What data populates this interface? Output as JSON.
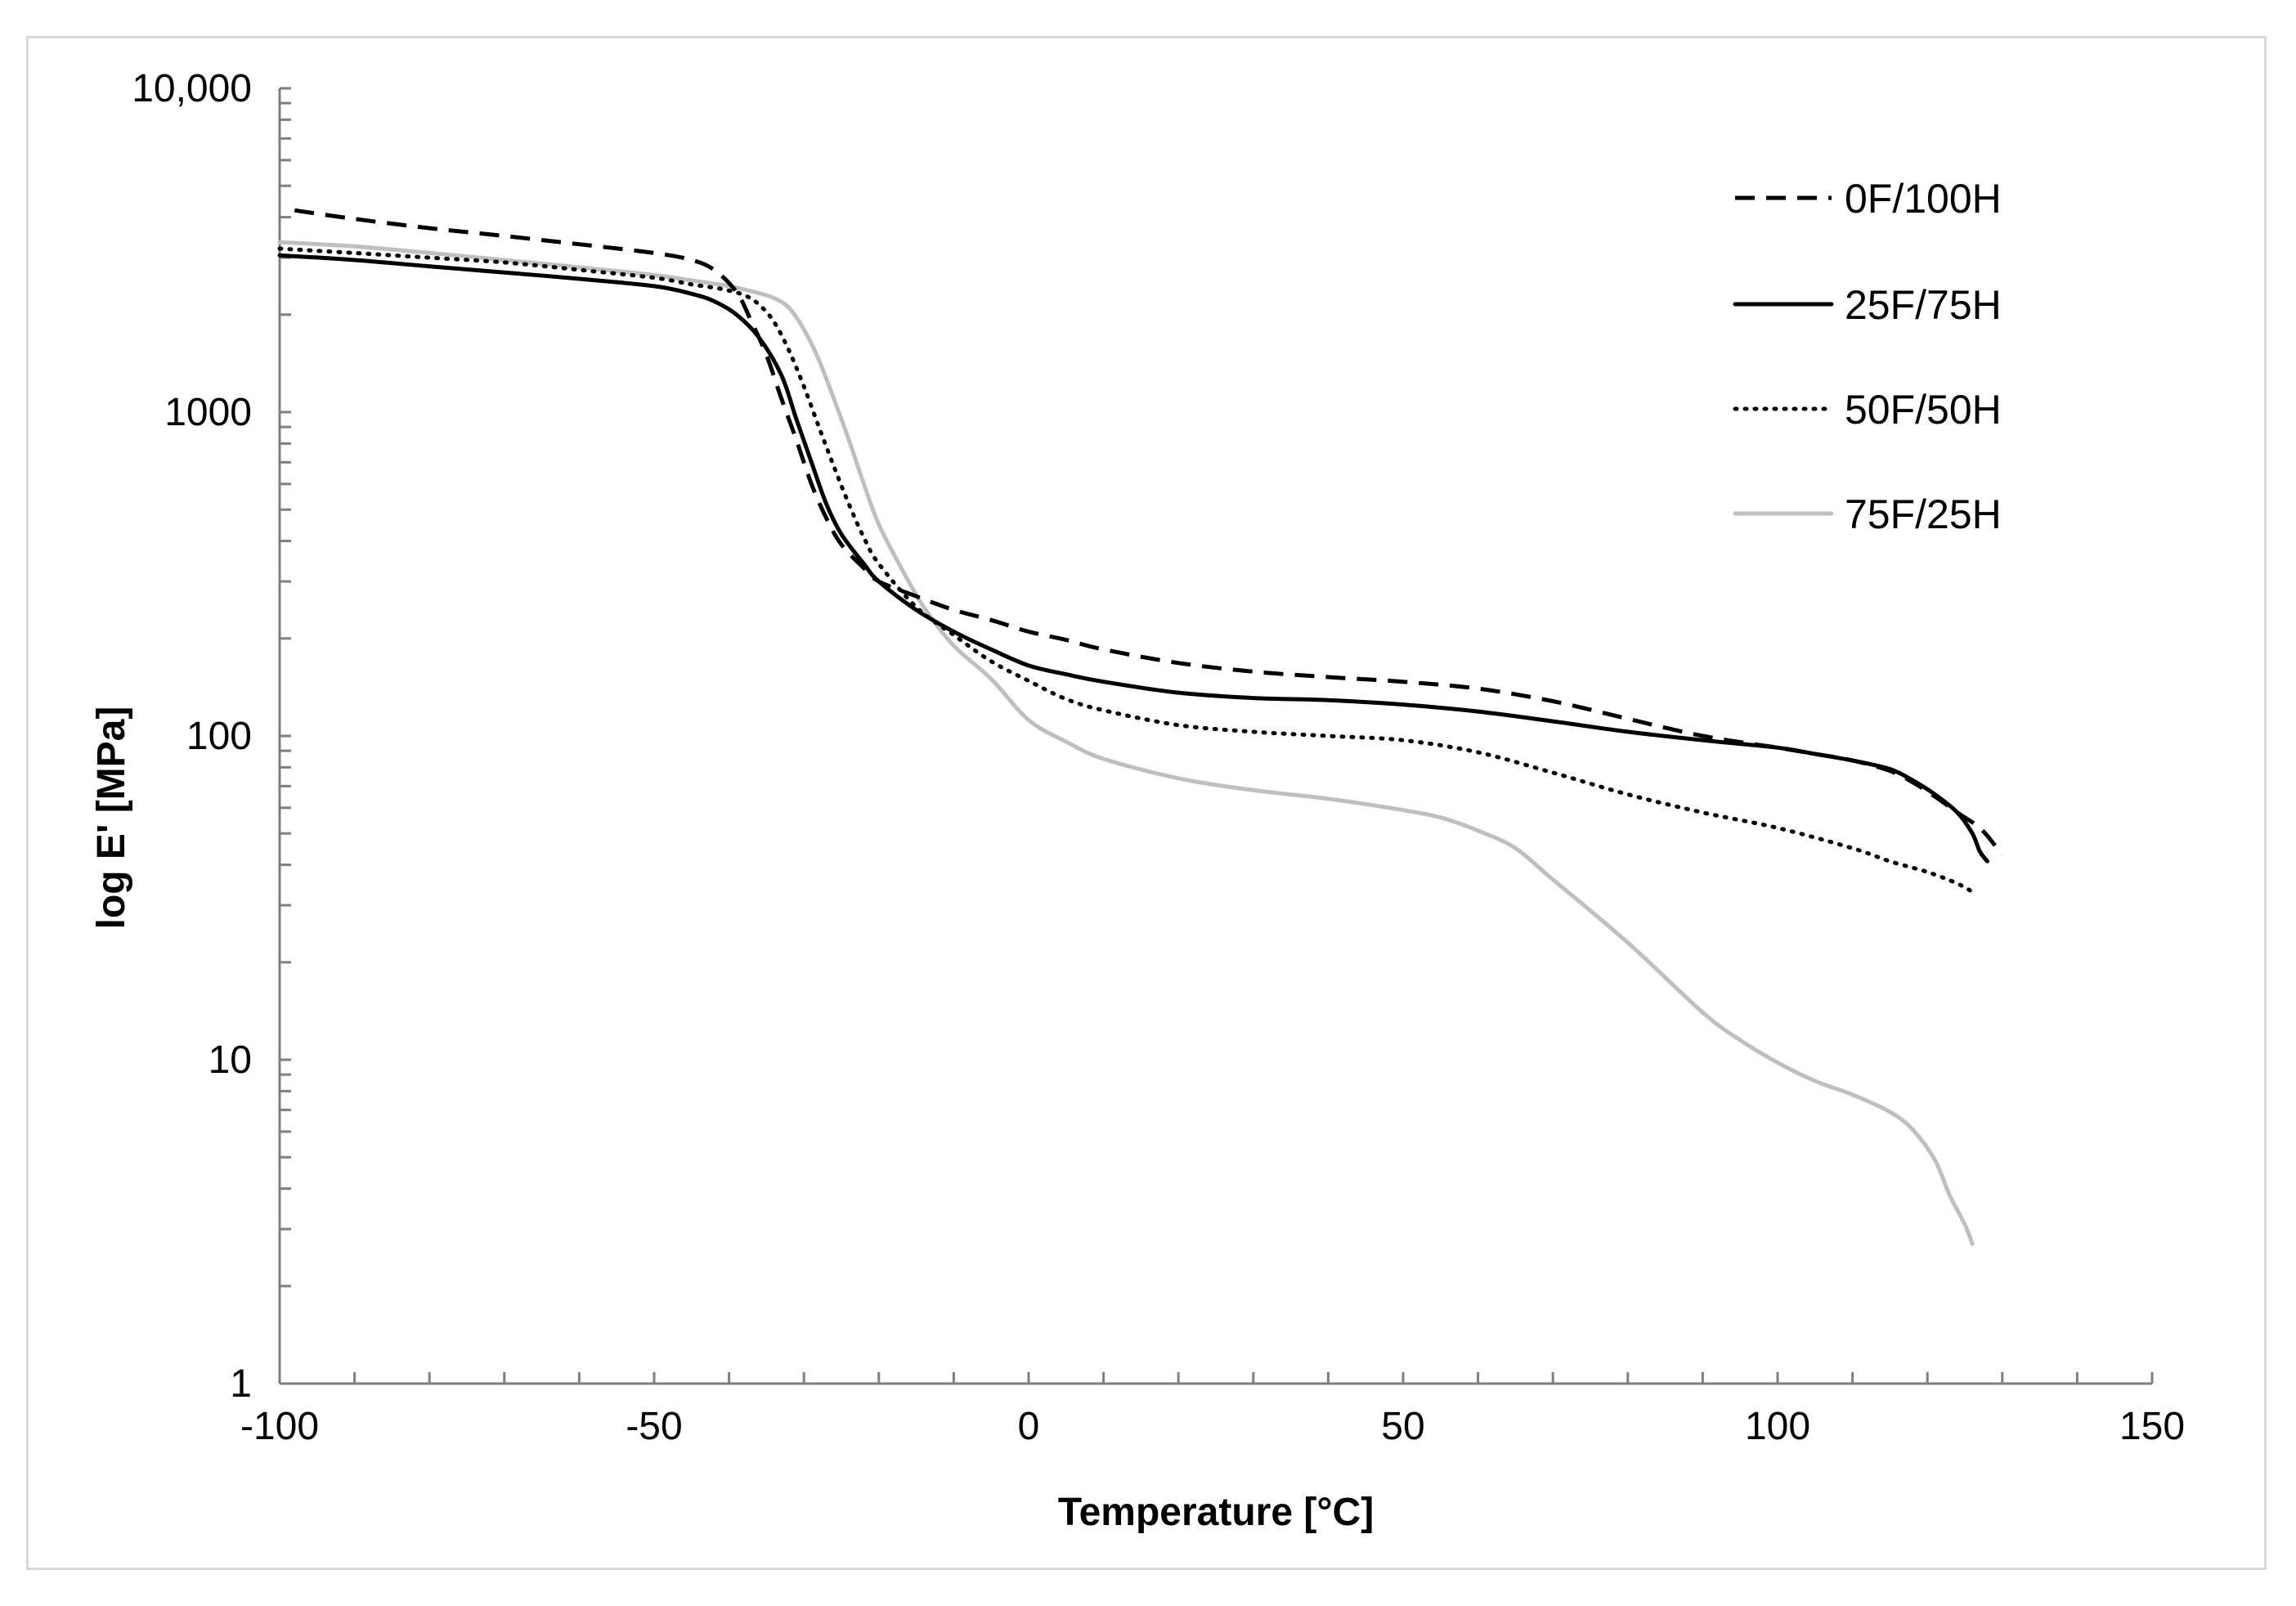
{
  "chart_data": {
    "type": "line",
    "title": "",
    "xlabel": "Temperature [°C]",
    "ylabel": "log E' [MPa]",
    "xlim": [
      -100,
      150
    ],
    "ylim": [
      1,
      10000
    ],
    "yscale": "log",
    "x_ticks": [
      -100,
      -50,
      0,
      50,
      100,
      150
    ],
    "x_tick_labels": [
      "-100",
      "-50",
      "0",
      "50",
      "100",
      "150"
    ],
    "y_ticks": [
      1,
      10,
      100,
      1000,
      10000
    ],
    "y_tick_labels": [
      "1",
      "10",
      "100",
      "1000",
      "10,000"
    ],
    "legend_position": "top-right",
    "series": [
      {
        "name": "0F/100H",
        "color": "#000000",
        "style": "dashed",
        "points": [
          [
            -98,
            4200
          ],
          [
            -90,
            3950
          ],
          [
            -80,
            3700
          ],
          [
            -70,
            3500
          ],
          [
            -60,
            3300
          ],
          [
            -50,
            3100
          ],
          [
            -45,
            2950
          ],
          [
            -42,
            2750
          ],
          [
            -39,
            2350
          ],
          [
            -37,
            1900
          ],
          [
            -35,
            1500
          ],
          [
            -33,
            1100
          ],
          [
            -31,
            820
          ],
          [
            -29,
            600
          ],
          [
            -27,
            470
          ],
          [
            -25,
            390
          ],
          [
            -22,
            330
          ],
          [
            -20,
            300
          ],
          [
            -15,
            270
          ],
          [
            -10,
            245
          ],
          [
            -5,
            228
          ],
          [
            0,
            210
          ],
          [
            5,
            198
          ],
          [
            10,
            185
          ],
          [
            20,
            168
          ],
          [
            30,
            158
          ],
          [
            40,
            152
          ],
          [
            50,
            147
          ],
          [
            60,
            140
          ],
          [
            70,
            128
          ],
          [
            80,
            113
          ],
          [
            90,
            100
          ],
          [
            100,
            92
          ],
          [
            105,
            88
          ],
          [
            110,
            84
          ],
          [
            115,
            78
          ],
          [
            118,
            72
          ],
          [
            121,
            65
          ],
          [
            124,
            58
          ],
          [
            127,
            52
          ],
          [
            129,
            46
          ],
          [
            130,
            43
          ]
        ]
      },
      {
        "name": "25F/75H",
        "color": "#000000",
        "style": "solid",
        "points": [
          [
            -100,
            3050
          ],
          [
            -90,
            2950
          ],
          [
            -80,
            2820
          ],
          [
            -70,
            2700
          ],
          [
            -60,
            2580
          ],
          [
            -50,
            2450
          ],
          [
            -45,
            2320
          ],
          [
            -42,
            2200
          ],
          [
            -39,
            2000
          ],
          [
            -36,
            1700
          ],
          [
            -33,
            1300
          ],
          [
            -31,
            950
          ],
          [
            -29,
            700
          ],
          [
            -27,
            520
          ],
          [
            -25,
            420
          ],
          [
            -22,
            340
          ],
          [
            -20,
            300
          ],
          [
            -15,
            245
          ],
          [
            -10,
            210
          ],
          [
            -5,
            185
          ],
          [
            0,
            165
          ],
          [
            5,
            155
          ],
          [
            10,
            147
          ],
          [
            20,
            136
          ],
          [
            30,
            131
          ],
          [
            40,
            129
          ],
          [
            50,
            125
          ],
          [
            60,
            119
          ],
          [
            70,
            111
          ],
          [
            80,
            103
          ],
          [
            90,
            97
          ],
          [
            100,
            92
          ],
          [
            105,
            88
          ],
          [
            110,
            84
          ],
          [
            115,
            79
          ],
          [
            118,
            73
          ],
          [
            121,
            66
          ],
          [
            124,
            58
          ],
          [
            126,
            50
          ],
          [
            127,
            44
          ],
          [
            128,
            41
          ]
        ]
      },
      {
        "name": "50F/50H",
        "color": "#000000",
        "style": "dotted",
        "points": [
          [
            -100,
            3200
          ],
          [
            -90,
            3100
          ],
          [
            -80,
            3000
          ],
          [
            -70,
            2900
          ],
          [
            -60,
            2750
          ],
          [
            -50,
            2600
          ],
          [
            -45,
            2480
          ],
          [
            -41,
            2400
          ],
          [
            -38,
            2300
          ],
          [
            -36,
            2150
          ],
          [
            -34,
            1900
          ],
          [
            -32,
            1550
          ],
          [
            -30,
            1200
          ],
          [
            -28,
            900
          ],
          [
            -26,
            680
          ],
          [
            -24,
            520
          ],
          [
            -22,
            410
          ],
          [
            -20,
            340
          ],
          [
            -15,
            250
          ],
          [
            -10,
            205
          ],
          [
            -5,
            170
          ],
          [
            0,
            148
          ],
          [
            5,
            130
          ],
          [
            10,
            120
          ],
          [
            20,
            108
          ],
          [
            30,
            103
          ],
          [
            40,
            100
          ],
          [
            50,
            97
          ],
          [
            60,
            89
          ],
          [
            70,
            77
          ],
          [
            80,
            66
          ],
          [
            90,
            58
          ],
          [
            100,
            52
          ],
          [
            110,
            45
          ],
          [
            115,
            41
          ],
          [
            120,
            38
          ],
          [
            124,
            35
          ],
          [
            126,
            33
          ]
        ]
      },
      {
        "name": "75F/25H",
        "color": "#bfbfbf",
        "style": "solid",
        "points": [
          [
            -100,
            3350
          ],
          [
            -90,
            3250
          ],
          [
            -80,
            3100
          ],
          [
            -70,
            2950
          ],
          [
            -60,
            2800
          ],
          [
            -50,
            2650
          ],
          [
            -45,
            2550
          ],
          [
            -40,
            2450
          ],
          [
            -36,
            2330
          ],
          [
            -34,
            2250
          ],
          [
            -32,
            2100
          ],
          [
            -30,
            1800
          ],
          [
            -28,
            1450
          ],
          [
            -26,
            1100
          ],
          [
            -24,
            820
          ],
          [
            -22,
            600
          ],
          [
            -20,
            450
          ],
          [
            -17,
            330
          ],
          [
            -14,
            250
          ],
          [
            -10,
            190
          ],
          [
            -5,
            150
          ],
          [
            0,
            112
          ],
          [
            5,
            96
          ],
          [
            10,
            85
          ],
          [
            20,
            74
          ],
          [
            30,
            68
          ],
          [
            40,
            64
          ],
          [
            50,
            59
          ],
          [
            55,
            56
          ],
          [
            60,
            51
          ],
          [
            65,
            45
          ],
          [
            70,
            36
          ],
          [
            80,
            23
          ],
          [
            90,
            14
          ],
          [
            95,
            11.5
          ],
          [
            100,
            9.8
          ],
          [
            105,
            8.6
          ],
          [
            110,
            7.8
          ],
          [
            115,
            6.9
          ],
          [
            118,
            6.1
          ],
          [
            121,
            4.9
          ],
          [
            123,
            3.8
          ],
          [
            125,
            3.1
          ],
          [
            126,
            2.7
          ]
        ]
      }
    ]
  }
}
